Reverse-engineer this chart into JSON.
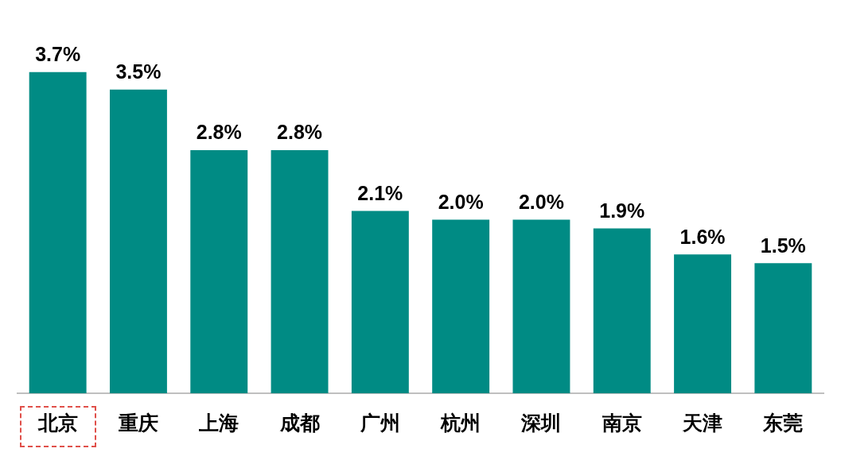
{
  "chart_data": {
    "type": "bar",
    "categories": [
      "北京",
      "重庆",
      "上海",
      "成都",
      "广州",
      "杭州",
      "深圳",
      "南京",
      "天津",
      "东莞"
    ],
    "values": [
      3.7,
      3.5,
      2.8,
      2.8,
      2.1,
      2.0,
      2.0,
      1.9,
      1.6,
      1.5
    ],
    "value_labels": [
      "3.7%",
      "3.5%",
      "2.8%",
      "2.8%",
      "2.1%",
      "2.0%",
      "2.0%",
      "1.9%",
      "1.6%",
      "1.5%"
    ],
    "color": "#008b84",
    "grid": false,
    "legend": false,
    "tick_labels": "x"
  }
}
